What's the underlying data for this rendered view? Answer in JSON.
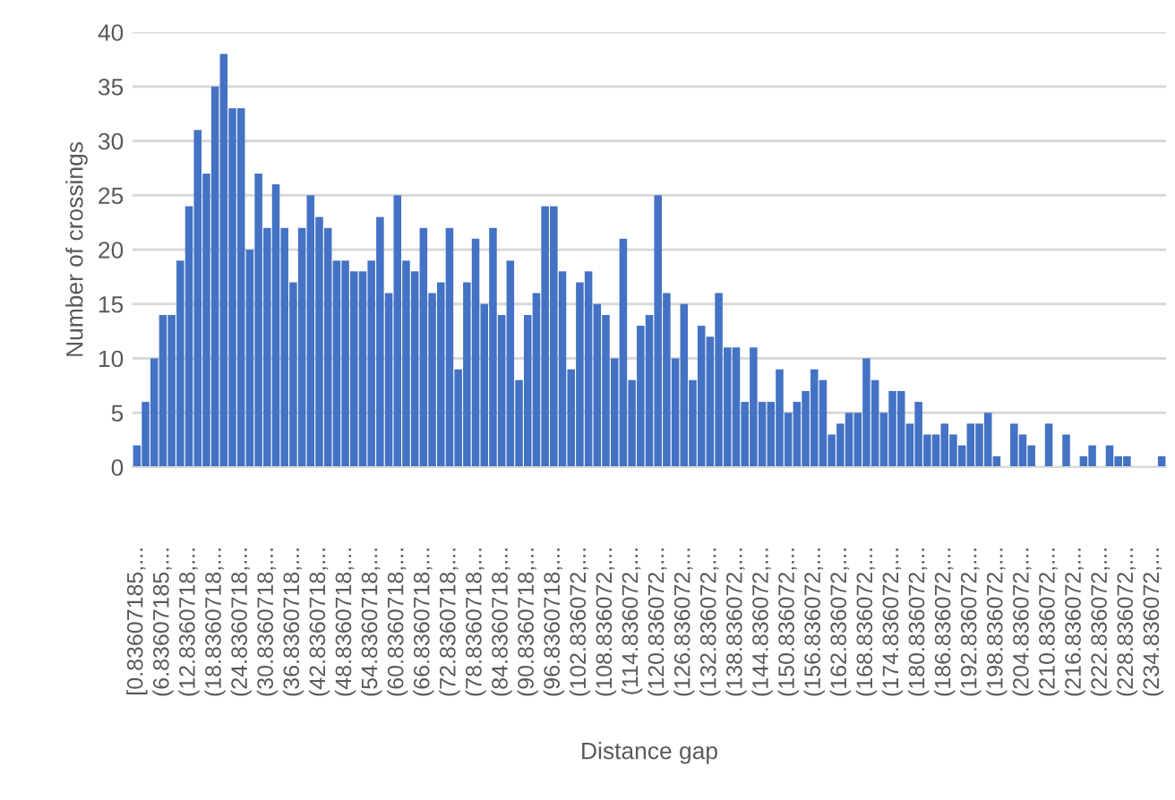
{
  "chart_data": {
    "type": "bar",
    "xlabel": "Distance gap",
    "ylabel": "Number of crossings",
    "categories": [
      "[0.83607185,...",
      null,
      null,
      "(6.83607185,...",
      null,
      null,
      "(12.8360718,...",
      null,
      null,
      "(18.8360718,...",
      null,
      null,
      "(24.8360718,...",
      null,
      null,
      "(30.8360718,...",
      null,
      null,
      "(36.8360718,...",
      null,
      null,
      "(42.8360718,...",
      null,
      null,
      "(48.8360718,...",
      null,
      null,
      "(54.8360718,...",
      null,
      null,
      "(60.8360718,...",
      null,
      null,
      "(66.8360718,...",
      null,
      null,
      "(72.8360718,...",
      null,
      null,
      "(78.8360718,...",
      null,
      null,
      "(84.8360718,...",
      null,
      null,
      "(90.8360718,...",
      null,
      null,
      "(96.8360718,...",
      null,
      null,
      "(102.836072,...",
      null,
      null,
      "(108.836072,...",
      null,
      null,
      "(114.836072,...",
      null,
      null,
      "(120.836072,...",
      null,
      null,
      "(126.836072,...",
      null,
      null,
      "(132.836072,...",
      null,
      null,
      "(138.836072,...",
      null,
      null,
      "(144.836072,...",
      null,
      null,
      "(150.836072,...",
      null,
      null,
      "(156.836072,...",
      null,
      null,
      "(162.836072,...",
      null,
      null,
      "(168.836072,...",
      null,
      null,
      "(174.836072,...",
      null,
      null,
      "(180.836072,...",
      null,
      null,
      "(186.836072,...",
      null,
      null,
      "(192.836072,...",
      null,
      null,
      "(198.836072,...",
      null,
      null,
      "(204.836072,...",
      null,
      null,
      "(210.836072,...",
      null,
      null,
      "(216.836072,...",
      null,
      null,
      "(222.836072,...",
      null,
      null,
      "(228.836072,...",
      null,
      null,
      "(234.836072,...",
      null
    ],
    "values": [
      2,
      6,
      10,
      14,
      14,
      19,
      24,
      31,
      27,
      35,
      38,
      33,
      33,
      20,
      27,
      22,
      26,
      22,
      17,
      22,
      25,
      23,
      22,
      19,
      19,
      18,
      18,
      19,
      23,
      16,
      25,
      19,
      18,
      22,
      16,
      17,
      22,
      9,
      17,
      21,
      15,
      22,
      14,
      19,
      8,
      14,
      16,
      24,
      24,
      18,
      9,
      17,
      18,
      15,
      14,
      10,
      21,
      8,
      13,
      14,
      25,
      16,
      10,
      15,
      8,
      13,
      12,
      16,
      11,
      11,
      6,
      11,
      6,
      6,
      9,
      5,
      6,
      7,
      9,
      8,
      3,
      4,
      5,
      5,
      10,
      8,
      5,
      7,
      7,
      4,
      6,
      3,
      3,
      4,
      3,
      2,
      4,
      4,
      5,
      1,
      0,
      4,
      3,
      2,
      0,
      4,
      0,
      3,
      0,
      1,
      2,
      0,
      2,
      1,
      1,
      0,
      0,
      0,
      1
    ],
    "color": "#4472c4",
    "ylim": [
      0,
      40
    ],
    "yticks": [
      0,
      5,
      10,
      15,
      20,
      25,
      30,
      35,
      40
    ],
    "grid": "y"
  }
}
